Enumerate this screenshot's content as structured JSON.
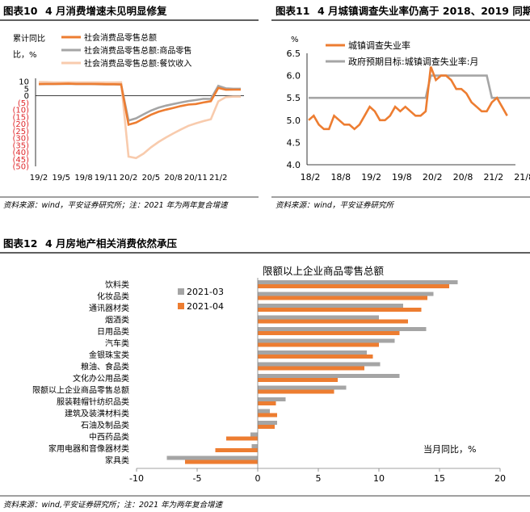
{
  "fig10": {
    "label": "图表10",
    "title": "4 月消费增速未见明显修复",
    "source": "资料来源：wind，平安证券研究所；注：2021 年为两年复合增速"
  },
  "fig11": {
    "label": "图表11",
    "title": "4 月城镇调查失业率仍高于 2018、2019 同期",
    "source": "资料来源：wind，平安证券研究所"
  },
  "fig12": {
    "label": "图表12",
    "title": "4 月房地产相关消费依然承压",
    "source": "资料来源：wind,平安证券研究所；注：2021 年为两年复合增速"
  },
  "chart_data": [
    {
      "type": "line",
      "ylabel": "累计同比，%",
      "ylim": [
        -50,
        10
      ],
      "yticks": [
        "10",
        "5",
        "0",
        "(5)",
        "(10)",
        "(15)",
        "(20)",
        "(25)",
        "(30)",
        "(35)",
        "(40)",
        "(45)",
        "(50)"
      ],
      "xticks": [
        "19/2",
        "19/5",
        "19/8",
        "19/11",
        "20/2",
        "20/5",
        "20/8",
        "20/11",
        "21/2"
      ],
      "series": [
        {
          "name": "社会消费品零售总额",
          "color": "#ED7D31",
          "values": [
            8.2,
            8.3,
            8.3,
            8.4,
            8.5,
            8.3,
            8.3,
            8.3,
            8.2,
            8.1,
            8.1,
            8.0,
            -20.5,
            -19.0,
            -16.2,
            -13.5,
            -11.4,
            -9.9,
            -8.6,
            -7.3,
            -6.3,
            -5.9,
            -4.8,
            -3.9,
            5.5,
            4.2,
            4.3,
            4.3
          ]
        },
        {
          "name": "社会消费品零售总额:商品零售",
          "color": "#A5A5A5",
          "values": [
            8.1,
            8.2,
            8.2,
            8.3,
            8.4,
            8.2,
            8.2,
            8.2,
            8.1,
            8.0,
            8.0,
            7.9,
            -17.6,
            -16.0,
            -13.2,
            -10.5,
            -8.5,
            -7.0,
            -5.9,
            -4.8,
            -3.8,
            -3.1,
            -2.2,
            -2.3,
            7.0,
            5.2,
            4.9,
            4.9
          ]
        },
        {
          "name": "社会消费品零售总额:餐饮收入",
          "color": "#F8CBAD",
          "values": [
            9.7,
            9.6,
            9.4,
            9.4,
            9.5,
            9.4,
            9.4,
            9.4,
            9.4,
            9.3,
            9.3,
            9.4,
            -43.1,
            -44.2,
            -41.0,
            -36.5,
            -32.8,
            -29.6,
            -26.6,
            -23.9,
            -21.3,
            -19.6,
            -18.0,
            -16.6,
            -4.0,
            -1.0,
            -0.7,
            -0.7
          ]
        }
      ]
    },
    {
      "type": "line",
      "ylabel": "%",
      "ylim": [
        4.0,
        6.5
      ],
      "yticks": [
        "6.5",
        "6.0",
        "5.5",
        "5.0",
        "4.5",
        "4.0"
      ],
      "xticks": [
        "18/2",
        "18/8",
        "19/2",
        "19/8",
        "20/2",
        "20/8",
        "21/2",
        "21/8"
      ],
      "series": [
        {
          "name": "城镇调查失业率",
          "color": "#ED7D31",
          "values": [
            5.0,
            5.1,
            4.9,
            4.8,
            4.8,
            5.1,
            5.0,
            4.9,
            4.9,
            4.8,
            4.9,
            5.1,
            5.3,
            5.2,
            5.0,
            5.0,
            5.1,
            5.3,
            5.2,
            5.3,
            5.2,
            5.1,
            5.1,
            5.2,
            6.2,
            5.9,
            6.0,
            6.0,
            5.9,
            5.7,
            5.7,
            5.6,
            5.4,
            5.3,
            5.2,
            5.2,
            5.4,
            5.5,
            5.3,
            5.1
          ]
        },
        {
          "name": "政府预期目标:城镇调查失业率:月",
          "color": "#A5A5A5",
          "values": [
            5.5,
            5.5,
            5.5,
            5.5,
            5.5,
            5.5,
            5.5,
            5.5,
            5.5,
            5.5,
            5.5,
            5.5,
            5.5,
            5.5,
            5.5,
            5.5,
            5.5,
            5.5,
            5.5,
            5.5,
            5.5,
            5.5,
            5.5,
            5.5,
            6.0,
            6.0,
            6.0,
            6.0,
            6.0,
            6.0,
            6.0,
            6.0,
            6.0,
            6.0,
            6.0,
            6.0,
            5.5,
            5.5,
            5.5,
            5.5,
            5.5,
            5.5,
            5.5,
            5.5,
            5.5,
            5.5,
            5.5,
            5.5,
            5.5,
            5.5
          ]
        }
      ]
    },
    {
      "type": "bar",
      "orientation": "horizontal",
      "title": "限额以上企业商品零售总额",
      "xlabel": "当月同比，%",
      "xlim": [
        -10,
        20
      ],
      "xticks": [
        "-10",
        "-5",
        "0",
        "5",
        "10",
        "15",
        "20"
      ],
      "categories": [
        "饮料类",
        "化妆品类",
        "通讯器材类",
        "烟酒类",
        "日用品类",
        "汽车类",
        "金银珠宝类",
        "粮油、食品类",
        "文化办公用品类",
        "限额以上企业商品零售总额",
        "服装鞋帽针纺织品类",
        "建筑及装潢材料类",
        "石油及制品类",
        "中西药品类",
        "家用电器和音像器材类",
        "家具类"
      ],
      "series": [
        {
          "name": "2021-03",
          "color": "#A5A5A5",
          "values": [
            16.5,
            14.5,
            12.0,
            10.0,
            13.9,
            11.3,
            9.0,
            10.1,
            11.7,
            7.3,
            2.3,
            1.0,
            1.6,
            -0.6,
            -0.5,
            -7.5
          ]
        },
        {
          "name": "2021-04",
          "color": "#ED7D31",
          "values": [
            15.8,
            14.0,
            13.5,
            12.4,
            11.7,
            10.0,
            9.5,
            8.8,
            6.6,
            6.3,
            1.5,
            1.6,
            1.4,
            -2.6,
            -3.5,
            -6.0
          ]
        }
      ]
    }
  ]
}
